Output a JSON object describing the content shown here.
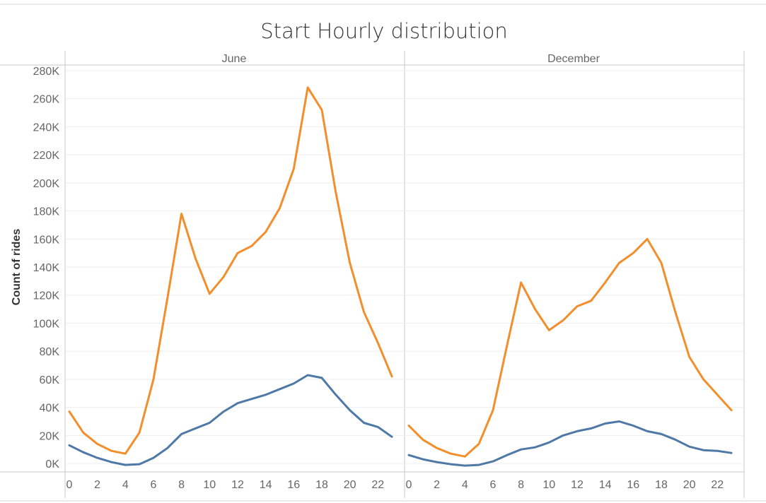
{
  "chart_data": {
    "type": "line",
    "title": "Start Hourly distribution",
    "ylabel": "Count of rides",
    "xlabel": "",
    "ylim": [
      -6000,
      284000
    ],
    "xlim": [
      -0.3,
      23.9
    ],
    "y_ticks": [
      0,
      20000,
      40000,
      60000,
      80000,
      100000,
      120000,
      140000,
      160000,
      180000,
      200000,
      220000,
      240000,
      260000,
      280000
    ],
    "y_tick_labels": [
      "0K",
      "20K",
      "40K",
      "60K",
      "80K",
      "100K",
      "120K",
      "140K",
      "160K",
      "180K",
      "200K",
      "220K",
      "240K",
      "260K",
      "280K"
    ],
    "x_ticks": [
      0,
      2,
      4,
      6,
      8,
      10,
      12,
      14,
      16,
      18,
      20,
      22
    ],
    "x_tick_labels": [
      "0",
      "2",
      "4",
      "6",
      "8",
      "10",
      "12",
      "14",
      "16",
      "18",
      "20",
      "22"
    ],
    "grid": true,
    "legend": false,
    "series_colors": [
      "#f28e2b",
      "#4e79a7"
    ],
    "panels": [
      {
        "label": "June",
        "x": [
          0,
          1,
          2,
          3,
          4,
          5,
          6,
          7,
          8,
          9,
          10,
          11,
          12,
          13,
          14,
          15,
          16,
          17,
          18,
          19,
          20,
          21,
          22,
          23
        ],
        "series": [
          {
            "values": [
              37000,
              22000,
              14000,
              9000,
              7000,
              22000,
              60000,
              118000,
              178000,
              146000,
              121000,
              133000,
              150000,
              155000,
              165000,
              182000,
              210000,
              268000,
              252000,
              193000,
              143000,
              108000,
              86000,
              62000
            ]
          },
          {
            "values": [
              13000,
              8000,
              4000,
              1000,
              -1000,
              -500,
              4000,
              11000,
              21000,
              25000,
              29000,
              37000,
              43000,
              46000,
              49000,
              53000,
              57000,
              63000,
              61000,
              49000,
              38000,
              29000,
              26000,
              19000
            ]
          }
        ]
      },
      {
        "label": "December",
        "x": [
          0,
          1,
          2,
          3,
          4,
          5,
          6,
          7,
          8,
          9,
          10,
          11,
          12,
          13,
          14,
          15,
          16,
          17,
          18,
          19,
          20,
          21,
          22,
          23
        ],
        "series": [
          {
            "values": [
              27000,
              17000,
              11000,
              7000,
              5000,
              14000,
              38000,
              84000,
              129000,
              110000,
              95000,
              102000,
              112000,
              116000,
              129000,
              143000,
              150000,
              160000,
              143000,
              108000,
              76000,
              60000,
              49000,
              38000
            ]
          },
          {
            "values": [
              6000,
              3000,
              1000,
              -500,
              -1500,
              -1000,
              1500,
              6000,
              10000,
              11500,
              15000,
              20000,
              23000,
              25000,
              28500,
              30000,
              27000,
              23000,
              21000,
              17000,
              12000,
              9500,
              9000,
              7500
            ]
          }
        ]
      }
    ]
  }
}
